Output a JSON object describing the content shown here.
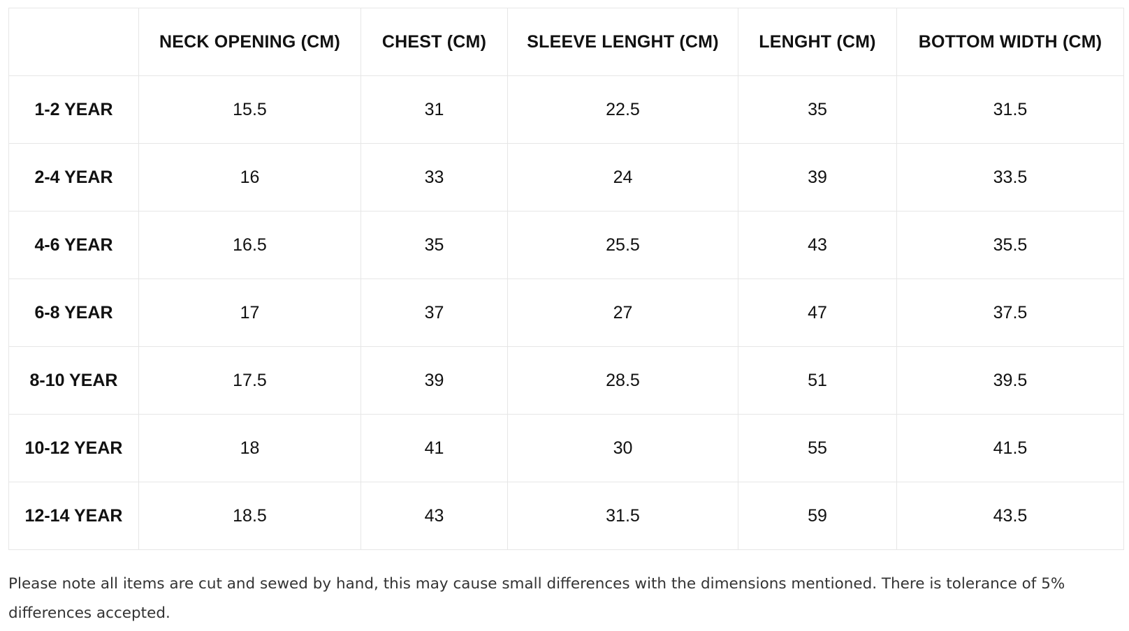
{
  "table": {
    "corner_label": "",
    "columns": [
      "NECK OPENING (CM)",
      "CHEST (CM)",
      "SLEEVE LENGHT (CM)",
      "LENGHT (CM)",
      "BOTTOM WIDTH (CM)"
    ],
    "rows": [
      {
        "label": "1-2 YEAR",
        "values": [
          "15.5",
          "31",
          "22.5",
          "35",
          "31.5"
        ]
      },
      {
        "label": "2-4 YEAR",
        "values": [
          "16",
          "33",
          "24",
          "39",
          "33.5"
        ]
      },
      {
        "label": "4-6 YEAR",
        "values": [
          "16.5",
          "35",
          "25.5",
          "43",
          "35.5"
        ]
      },
      {
        "label": "6-8 YEAR",
        "values": [
          "17",
          "37",
          "27",
          "47",
          "37.5"
        ]
      },
      {
        "label": "8-10 YEAR",
        "values": [
          "17.5",
          "39",
          "28.5",
          "51",
          "39.5"
        ]
      },
      {
        "label": "10-12 YEAR",
        "values": [
          "18",
          "41",
          "30",
          "55",
          "41.5"
        ]
      },
      {
        "label": "12-14 YEAR",
        "values": [
          "18.5",
          "43",
          "31.5",
          "59",
          "43.5"
        ]
      }
    ]
  },
  "note": "Please note all items are cut and sewed by hand, this may cause small differences with the dimensions mentioned. There is tolerance of 5% differences accepted."
}
